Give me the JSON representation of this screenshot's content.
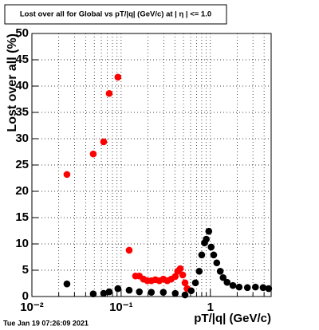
{
  "chart_data": {
    "type": "scatter",
    "title": "Lost over all for Global vs pT/|q| (GeV/c) at | η | <= 1.0",
    "x_label": "pT/|q| (GeV/c)",
    "y_label": "Lost over all (%)",
    "footer": "Tue Jan 19 07:26:09 2021",
    "x_scale": "log",
    "grid": true,
    "xlim": [
      0.01,
      4.8
    ],
    "ylim": [
      0,
      50
    ],
    "xticks": [
      {
        "value": 0.01,
        "label": "10⁻²"
      },
      {
        "value": 0.1,
        "label": "10⁻¹"
      },
      1
    ],
    "xminorticks": [
      0.02,
      0.03,
      0.04,
      0.05,
      0.06,
      0.07,
      0.08,
      0.09,
      0.2,
      0.3,
      0.4,
      0.5,
      0.6,
      0.7,
      0.8,
      0.9,
      2,
      3,
      4
    ],
    "yticks": [
      0,
      5,
      10,
      15,
      20,
      25,
      30,
      35,
      40,
      45,
      50
    ],
    "series": [
      {
        "color": "#ff0000",
        "x": [
          0.0247,
          0.0487,
          0.0637,
          0.0735,
          0.092,
          0.123,
          0.145,
          0.16,
          0.178,
          0.197,
          0.218,
          0.242,
          0.268,
          0.297,
          0.329,
          0.364,
          0.404,
          0.43,
          0.46,
          0.49,
          0.52,
          0.55
        ],
        "values": [
          23.2,
          27.1,
          29.4,
          38.6,
          41.7,
          8.8,
          3.9,
          3.9,
          3.3,
          3.0,
          3.0,
          3.2,
          3.0,
          3.3,
          3.0,
          3.3,
          3.8,
          4.8,
          5.3,
          4.1,
          2.6,
          1.5
        ]
      },
      {
        "color": "#000000",
        "x": [
          0.0247,
          0.0487,
          0.0637,
          0.0735,
          0.092,
          0.123,
          0.16,
          0.218,
          0.297,
          0.404,
          0.52,
          0.61,
          0.68,
          0.75,
          0.8,
          0.86,
          0.9,
          0.96,
          1.02,
          1.09,
          1.18,
          1.29,
          1.39,
          1.54,
          1.79,
          2.1,
          2.6,
          3.2,
          3.9,
          4.5
        ],
        "values": [
          2.4,
          0.5,
          0.6,
          0.9,
          1.5,
          1.2,
          0.9,
          0.8,
          0.8,
          0.6,
          0.3,
          1.1,
          2.6,
          4.8,
          7.9,
          10.2,
          10.9,
          12.4,
          9.4,
          7.9,
          6.4,
          4.8,
          3.6,
          2.7,
          2.1,
          1.8,
          1.7,
          1.8,
          1.7,
          1.5
        ]
      }
    ]
  }
}
